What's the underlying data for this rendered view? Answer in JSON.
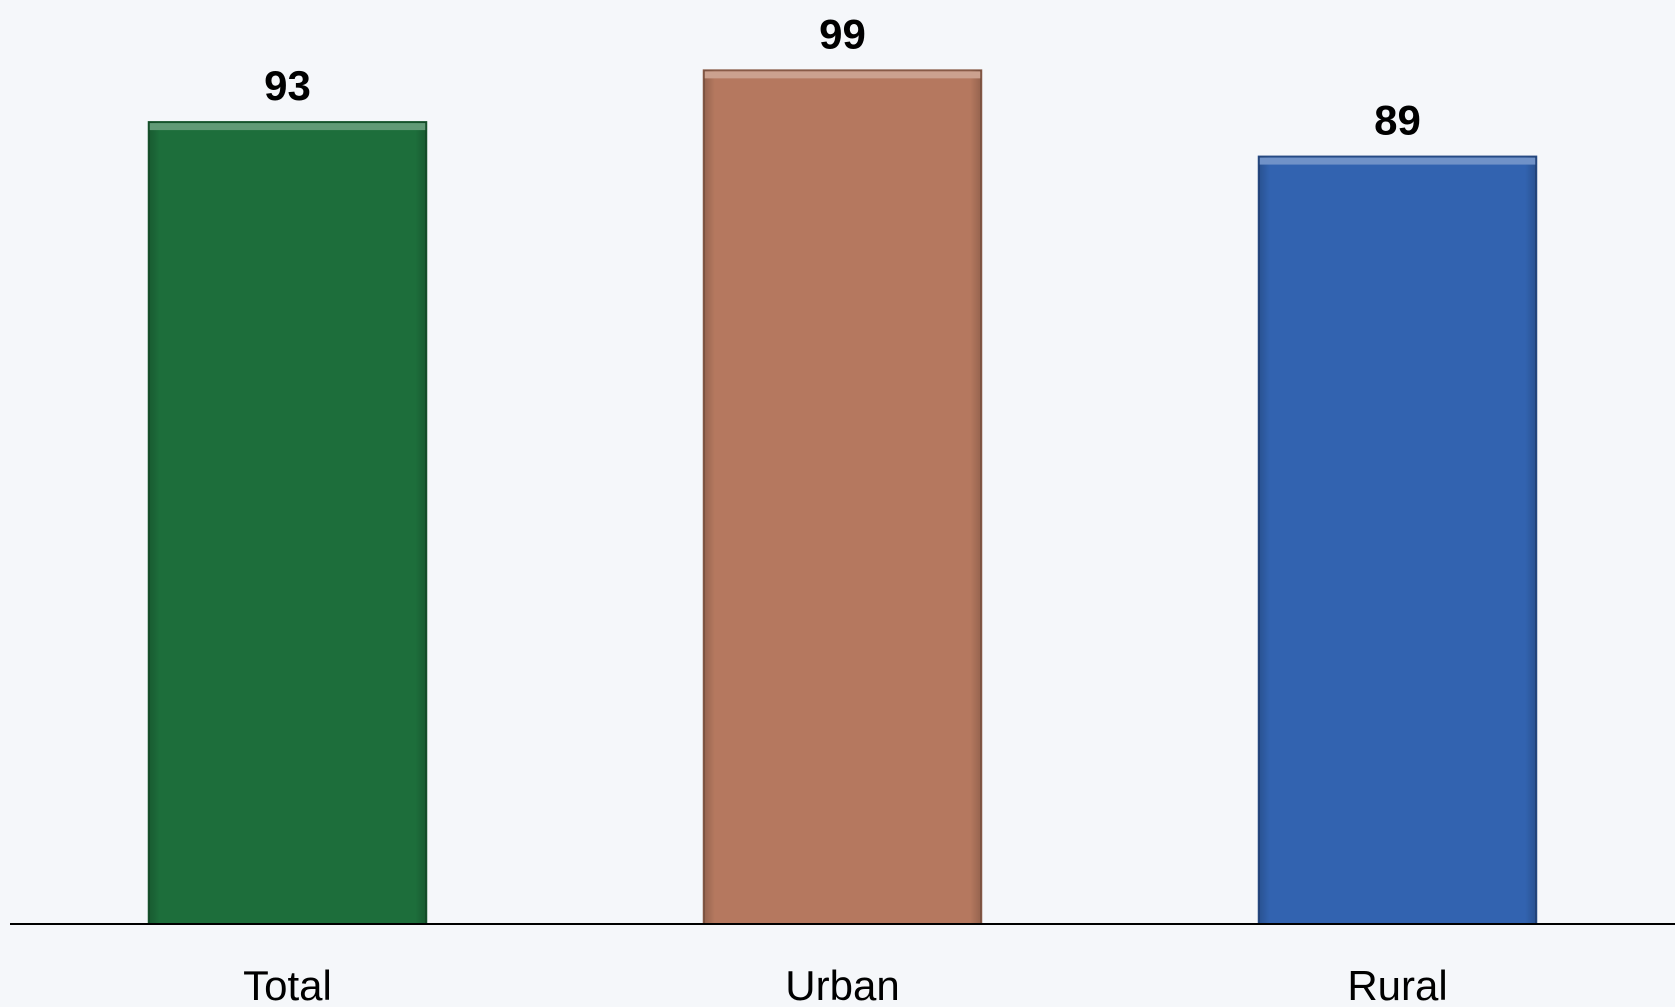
{
  "chart_data": {
    "type": "bar",
    "categories": [
      "Total",
      "Urban",
      "Rural"
    ],
    "values": [
      93,
      99,
      89
    ],
    "colors": [
      "#1d6e3b",
      "#b5785f",
      "#3263b0"
    ],
    "title": "",
    "xlabel": "",
    "ylabel": "",
    "ylim": [
      0,
      106
    ],
    "grid": false,
    "legend": "none"
  }
}
